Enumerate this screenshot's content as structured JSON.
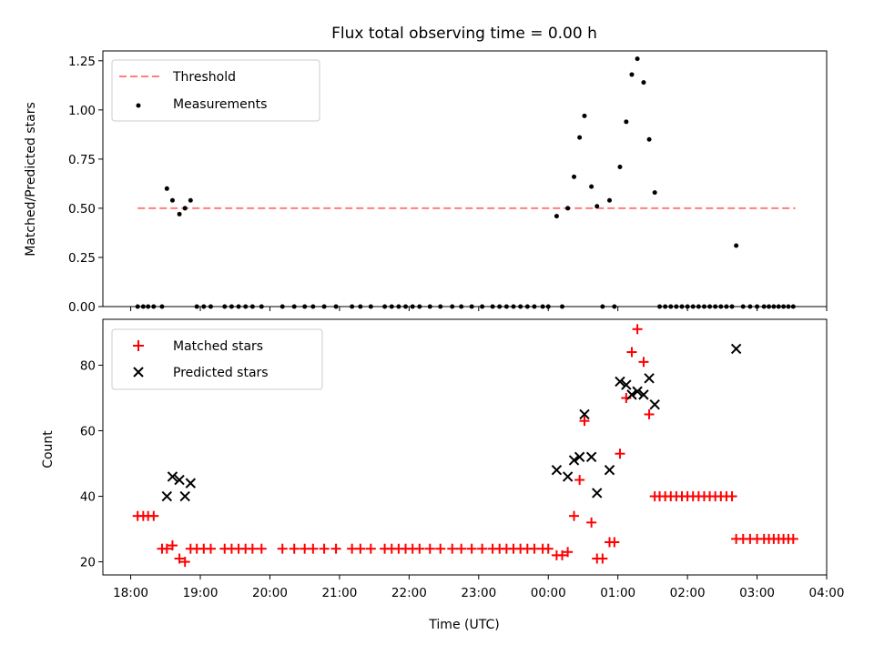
{
  "chart_data": {
    "title": "Flux total observing time = 0.00 h",
    "xlabel": "Time (UTC)",
    "xlim_hours": [
      17.6,
      28.0
    ],
    "x_ticks": [
      {
        "value": 18,
        "label": "18:00"
      },
      {
        "value": 19,
        "label": "19:00"
      },
      {
        "value": 20,
        "label": "20:00"
      },
      {
        "value": 21,
        "label": "21:00"
      },
      {
        "value": 22,
        "label": "22:00"
      },
      {
        "value": 23,
        "label": "23:00"
      },
      {
        "value": 24,
        "label": "00:00"
      },
      {
        "value": 25,
        "label": "01:00"
      },
      {
        "value": 26,
        "label": "02:00"
      },
      {
        "value": 27,
        "label": "03:00"
      },
      {
        "value": 28,
        "label": "04:00"
      }
    ],
    "panels": [
      {
        "type": "scatter",
        "ylabel": "Matched/Predicted stars",
        "ylim": [
          0,
          1.3
        ],
        "y_ticks": [
          0.0,
          0.25,
          0.5,
          0.75,
          1.0,
          1.25
        ],
        "y_tick_labels": [
          "0.00",
          "0.25",
          "0.50",
          "0.75",
          "1.00",
          "1.25"
        ],
        "legend": "top-left",
        "threshold": {
          "name": "Threshold",
          "value": 0.5,
          "x_range": [
            18.1,
            27.55
          ],
          "color": "#ff7f7f"
        },
        "series": [
          {
            "name": "Measurements",
            "color": "#000000",
            "marker": "dot",
            "points": [
              [
                18.1,
                0
              ],
              [
                18.18,
                0
              ],
              [
                18.25,
                0
              ],
              [
                18.33,
                0
              ],
              [
                18.45,
                0
              ],
              [
                18.52,
                0.6
              ],
              [
                18.6,
                0.54
              ],
              [
                18.7,
                0.47
              ],
              [
                18.78,
                0.5
              ],
              [
                18.86,
                0.54
              ],
              [
                18.95,
                0
              ],
              [
                19.05,
                0
              ],
              [
                19.15,
                0
              ],
              [
                19.35,
                0
              ],
              [
                19.45,
                0
              ],
              [
                19.55,
                0
              ],
              [
                19.65,
                0
              ],
              [
                19.75,
                0
              ],
              [
                19.88,
                0
              ],
              [
                20.18,
                0
              ],
              [
                20.35,
                0
              ],
              [
                20.5,
                0
              ],
              [
                20.62,
                0
              ],
              [
                20.78,
                0
              ],
              [
                20.95,
                0
              ],
              [
                21.18,
                0
              ],
              [
                21.3,
                0
              ],
              [
                21.45,
                0
              ],
              [
                21.65,
                0
              ],
              [
                21.75,
                0
              ],
              [
                21.85,
                0
              ],
              [
                21.95,
                0
              ],
              [
                22.05,
                0
              ],
              [
                22.15,
                0
              ],
              [
                22.3,
                0
              ],
              [
                22.45,
                0
              ],
              [
                22.62,
                0
              ],
              [
                22.75,
                0
              ],
              [
                22.9,
                0
              ],
              [
                23.05,
                0
              ],
              [
                23.2,
                0
              ],
              [
                23.3,
                0
              ],
              [
                23.4,
                0
              ],
              [
                23.5,
                0
              ],
              [
                23.6,
                0
              ],
              [
                23.7,
                0
              ],
              [
                23.8,
                0
              ],
              [
                23.92,
                0
              ],
              [
                24.0,
                0
              ],
              [
                24.12,
                0.46
              ],
              [
                24.2,
                0
              ],
              [
                24.28,
                0.5
              ],
              [
                24.37,
                0.66
              ],
              [
                24.45,
                0.86
              ],
              [
                24.52,
                0.97
              ],
              [
                24.62,
                0.61
              ],
              [
                24.7,
                0.51
              ],
              [
                24.78,
                0
              ],
              [
                24.88,
                0.54
              ],
              [
                24.95,
                0
              ],
              [
                25.03,
                0.71
              ],
              [
                25.12,
                0.94
              ],
              [
                25.2,
                1.18
              ],
              [
                25.28,
                1.26
              ],
              [
                25.37,
                1.14
              ],
              [
                25.45,
                0.85
              ],
              [
                25.53,
                0.58
              ],
              [
                25.6,
                0
              ],
              [
                25.68,
                0
              ],
              [
                25.76,
                0
              ],
              [
                25.84,
                0
              ],
              [
                25.92,
                0
              ],
              [
                26.0,
                0
              ],
              [
                26.08,
                0
              ],
              [
                26.16,
                0
              ],
              [
                26.24,
                0
              ],
              [
                26.32,
                0
              ],
              [
                26.4,
                0
              ],
              [
                26.48,
                0
              ],
              [
                26.56,
                0
              ],
              [
                26.64,
                0
              ],
              [
                26.7,
                0.31
              ],
              [
                26.8,
                0
              ],
              [
                26.9,
                0
              ],
              [
                27.0,
                0
              ],
              [
                27.1,
                0
              ],
              [
                27.17,
                0
              ],
              [
                27.24,
                0
              ],
              [
                27.31,
                0
              ],
              [
                27.38,
                0
              ],
              [
                27.45,
                0
              ],
              [
                27.52,
                0
              ]
            ]
          }
        ]
      },
      {
        "type": "scatter",
        "ylabel": "Count",
        "ylim": [
          16,
          94
        ],
        "y_ticks": [
          20,
          40,
          60,
          80
        ],
        "y_tick_labels": [
          "20",
          "40",
          "60",
          "80"
        ],
        "legend": "top-left",
        "series": [
          {
            "name": "Matched stars",
            "color": "#ff0000",
            "marker": "plus",
            "points": [
              [
                18.1,
                34
              ],
              [
                18.18,
                34
              ],
              [
                18.25,
                34
              ],
              [
                18.33,
                34
              ],
              [
                18.45,
                24
              ],
              [
                18.52,
                24
              ],
              [
                18.6,
                25
              ],
              [
                18.7,
                21
              ],
              [
                18.78,
                20
              ],
              [
                18.86,
                24
              ],
              [
                18.95,
                24
              ],
              [
                19.05,
                24
              ],
              [
                19.15,
                24
              ],
              [
                19.35,
                24
              ],
              [
                19.45,
                24
              ],
              [
                19.55,
                24
              ],
              [
                19.65,
                24
              ],
              [
                19.75,
                24
              ],
              [
                19.88,
                24
              ],
              [
                20.18,
                24
              ],
              [
                20.35,
                24
              ],
              [
                20.5,
                24
              ],
              [
                20.62,
                24
              ],
              [
                20.78,
                24
              ],
              [
                20.95,
                24
              ],
              [
                21.18,
                24
              ],
              [
                21.3,
                24
              ],
              [
                21.45,
                24
              ],
              [
                21.65,
                24
              ],
              [
                21.75,
                24
              ],
              [
                21.85,
                24
              ],
              [
                21.95,
                24
              ],
              [
                22.05,
                24
              ],
              [
                22.15,
                24
              ],
              [
                22.3,
                24
              ],
              [
                22.45,
                24
              ],
              [
                22.62,
                24
              ],
              [
                22.75,
                24
              ],
              [
                22.9,
                24
              ],
              [
                23.05,
                24
              ],
              [
                23.2,
                24
              ],
              [
                23.3,
                24
              ],
              [
                23.4,
                24
              ],
              [
                23.5,
                24
              ],
              [
                23.6,
                24
              ],
              [
                23.7,
                24
              ],
              [
                23.8,
                24
              ],
              [
                23.92,
                24
              ],
              [
                24.0,
                24
              ],
              [
                24.12,
                22
              ],
              [
                24.2,
                22
              ],
              [
                24.28,
                23
              ],
              [
                24.37,
                34
              ],
              [
                24.45,
                45
              ],
              [
                24.52,
                63
              ],
              [
                24.62,
                32
              ],
              [
                24.7,
                21
              ],
              [
                24.78,
                21
              ],
              [
                24.88,
                26
              ],
              [
                24.95,
                26
              ],
              [
                25.03,
                53
              ],
              [
                25.12,
                70
              ],
              [
                25.2,
                84
              ],
              [
                25.28,
                91
              ],
              [
                25.37,
                81
              ],
              [
                25.45,
                65
              ],
              [
                25.53,
                40
              ],
              [
                25.6,
                40
              ],
              [
                25.68,
                40
              ],
              [
                25.76,
                40
              ],
              [
                25.84,
                40
              ],
              [
                25.92,
                40
              ],
              [
                26.0,
                40
              ],
              [
                26.08,
                40
              ],
              [
                26.16,
                40
              ],
              [
                26.24,
                40
              ],
              [
                26.32,
                40
              ],
              [
                26.4,
                40
              ],
              [
                26.48,
                40
              ],
              [
                26.56,
                40
              ],
              [
                26.64,
                40
              ],
              [
                26.7,
                27
              ],
              [
                26.8,
                27
              ],
              [
                26.9,
                27
              ],
              [
                27.0,
                27
              ],
              [
                27.1,
                27
              ],
              [
                27.17,
                27
              ],
              [
                27.24,
                27
              ],
              [
                27.31,
                27
              ],
              [
                27.38,
                27
              ],
              [
                27.45,
                27
              ],
              [
                27.52,
                27
              ]
            ]
          },
          {
            "name": "Predicted stars",
            "color": "#000000",
            "marker": "x",
            "points": [
              [
                18.52,
                40
              ],
              [
                18.6,
                46
              ],
              [
                18.7,
                45
              ],
              [
                18.78,
                40
              ],
              [
                18.86,
                44
              ],
              [
                24.12,
                48
              ],
              [
                24.28,
                46
              ],
              [
                24.37,
                51
              ],
              [
                24.45,
                52
              ],
              [
                24.52,
                65
              ],
              [
                24.62,
                52
              ],
              [
                24.7,
                41
              ],
              [
                24.88,
                48
              ],
              [
                25.03,
                75
              ],
              [
                25.12,
                74
              ],
              [
                25.2,
                71
              ],
              [
                25.28,
                72
              ],
              [
                25.37,
                71
              ],
              [
                25.45,
                76
              ],
              [
                25.53,
                68
              ],
              [
                26.7,
                85
              ]
            ]
          }
        ]
      }
    ]
  }
}
